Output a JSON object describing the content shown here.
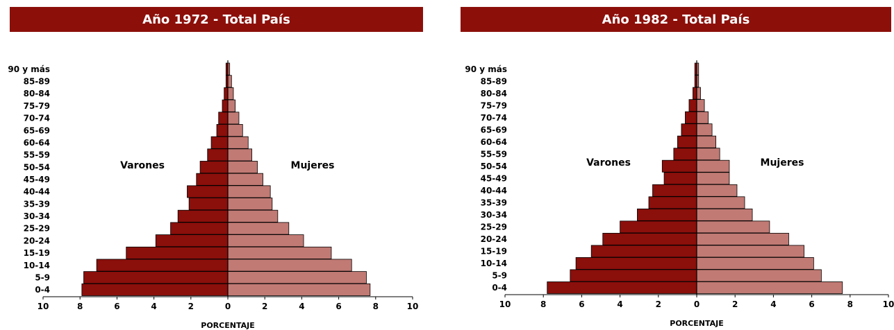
{
  "colors": {
    "title_bg": "#8c0f0a",
    "male": "#8b0f0b",
    "female": "#c17a74"
  },
  "chart_data": [
    {
      "type": "bar",
      "orientation": "population-pyramid",
      "title": "Año 1972 - Total País",
      "xlabel": "PORCENTAJE",
      "male_label": "Varones",
      "female_label": "Mujeres",
      "xlim": [
        -10,
        10
      ],
      "x_ticks": [
        "10",
        "8",
        "6",
        "4",
        "2",
        "0",
        "2",
        "4",
        "6",
        "8",
        "10"
      ],
      "categories": [
        "0-4",
        "5-9",
        "10-14",
        "15-19",
        "20-24",
        "25-29",
        "30-34",
        "35-39",
        "40-44",
        "45-49",
        "50-54",
        "55-59",
        "60-64",
        "65-69",
        "70-74",
        "75-79",
        "80-84",
        "85-89",
        "90 y más"
      ],
      "series": [
        {
          "name": "Varones",
          "values": [
            7.9,
            7.8,
            7.1,
            5.5,
            3.9,
            3.1,
            2.7,
            2.1,
            2.2,
            1.7,
            1.5,
            1.1,
            0.9,
            0.6,
            0.5,
            0.3,
            0.2,
            0.1,
            0.1
          ]
        },
        {
          "name": "Mujeres",
          "values": [
            7.7,
            7.5,
            6.7,
            5.6,
            4.1,
            3.3,
            2.7,
            2.4,
            2.3,
            1.9,
            1.6,
            1.3,
            1.1,
            0.8,
            0.6,
            0.4,
            0.3,
            0.2,
            0.1
          ]
        }
      ]
    },
    {
      "type": "bar",
      "orientation": "population-pyramid",
      "title": "Año 1982 - Total País",
      "xlabel": "PORCENTAJE",
      "male_label": "Varones",
      "female_label": "Mujeres",
      "xlim": [
        -10,
        10
      ],
      "x_ticks": [
        "10",
        "8",
        "6",
        "4",
        "2",
        "0",
        "2",
        "4",
        "6",
        "8",
        "10"
      ],
      "categories": [
        "0-4",
        "5-9",
        "10-14",
        "15-19",
        "20-24",
        "25-29",
        "30-34",
        "35-39",
        "40-44",
        "45-49",
        "50-54",
        "55-59",
        "60-64",
        "65-69",
        "70-74",
        "75-79",
        "80-84",
        "85-89",
        "90 y más"
      ],
      "series": [
        {
          "name": "Varones",
          "values": [
            7.8,
            6.6,
            6.3,
            5.5,
            4.9,
            4.0,
            3.1,
            2.5,
            2.3,
            1.7,
            1.8,
            1.2,
            1.0,
            0.8,
            0.6,
            0.4,
            0.2,
            0.1,
            0.1
          ]
        },
        {
          "name": "Mujeres",
          "values": [
            7.6,
            6.5,
            6.1,
            5.6,
            4.8,
            3.8,
            2.9,
            2.5,
            2.1,
            1.7,
            1.7,
            1.2,
            1.0,
            0.8,
            0.6,
            0.4,
            0.2,
            0.1,
            0.1
          ]
        }
      ]
    }
  ]
}
